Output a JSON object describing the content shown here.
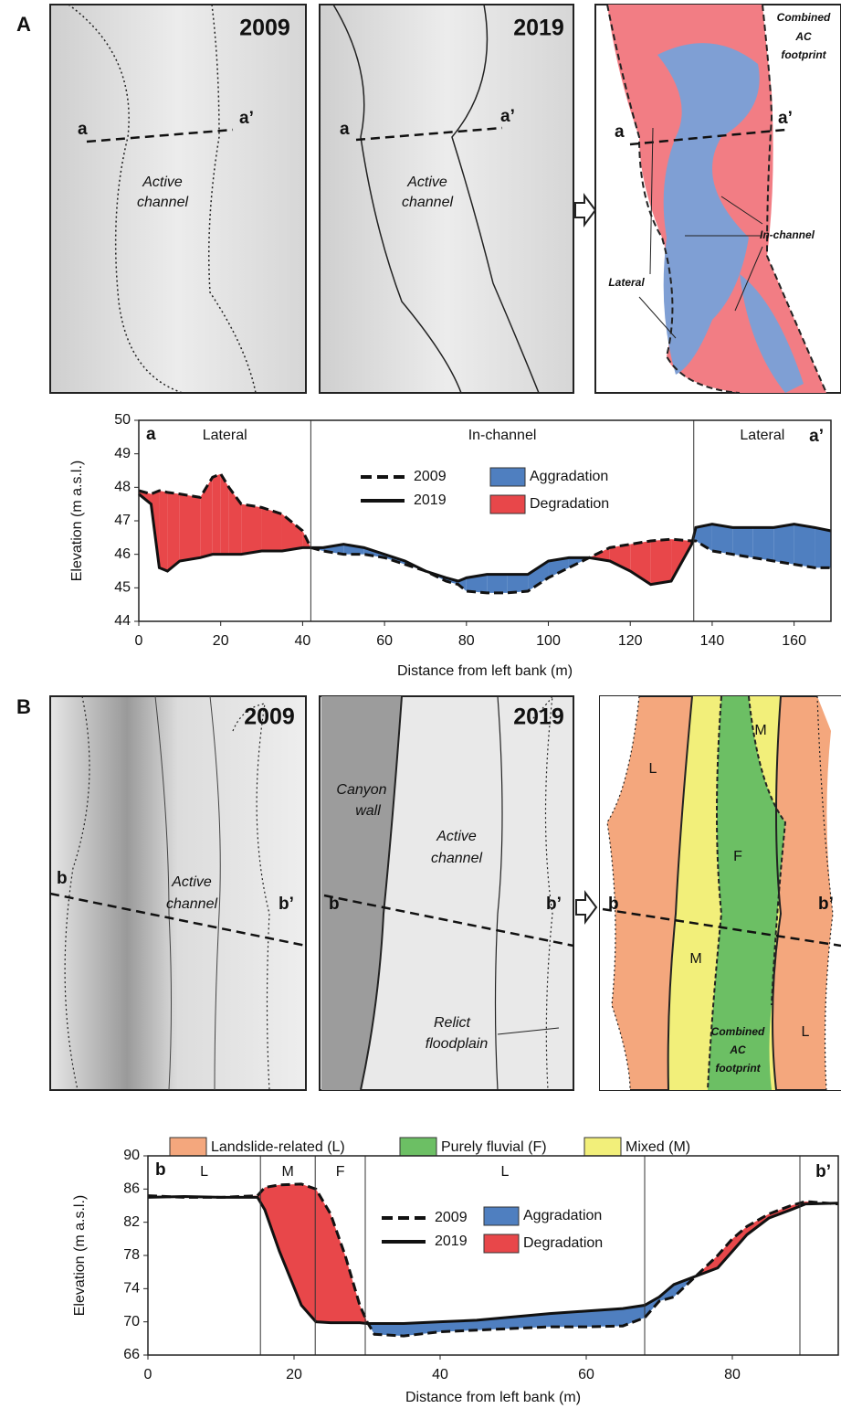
{
  "panel_a": {
    "letter": "A",
    "map_2009": {
      "year": "2009",
      "left": "a",
      "right": "a’",
      "channel": [
        "Active",
        "channel"
      ]
    },
    "map_2019": {
      "year": "2019",
      "left": "a",
      "right": "a’",
      "channel": [
        "Active",
        "channel"
      ]
    },
    "map_combined": {
      "footprint": [
        "Combined",
        "AC",
        "footprint"
      ],
      "left": "a",
      "right": "a’",
      "in_channel": "In-channel",
      "lateral": "Lateral"
    }
  },
  "panel_b": {
    "letter": "B",
    "map_2009": {
      "year": "2009",
      "left": "b",
      "right": "b’",
      "channel": [
        "Active",
        "channel"
      ]
    },
    "map_2019": {
      "year": "2019",
      "canyon": [
        "Canyon",
        "wall"
      ],
      "channel": [
        "Active",
        "channel"
      ],
      "left": "b",
      "right": "b’",
      "floodplain": [
        "Relict",
        "floodplain"
      ]
    },
    "map_combined": {
      "l_top": "L",
      "m_top": "M",
      "f": "F",
      "left": "b",
      "right": "b’",
      "m_bottom": "M",
      "footprint": [
        "Combined",
        "AC",
        "footprint"
      ],
      "l_bottom": "L"
    },
    "legend": [
      {
        "name": "Landslide-related (L)",
        "color": "#f4a77d"
      },
      {
        "name": "Purely fluvial (F)",
        "color": "#6cbf64"
      },
      {
        "name": "Mixed (M)",
        "color": "#f2ef7a"
      }
    ]
  },
  "chart_data": [
    {
      "type": "line",
      "xlabel": "Distance from left bank (m)",
      "ylabel": "Elevation (m a.s.l.)",
      "corner_labels": [
        "a",
        "a’"
      ],
      "zones": [
        "Lateral",
        "In-channel",
        "Lateral"
      ],
      "zone_bounds": [
        42,
        135.5
      ],
      "x": [
        0,
        3,
        5,
        7,
        10,
        15,
        18,
        20,
        22,
        25,
        30,
        35,
        40,
        42,
        45,
        50,
        55,
        60,
        65,
        70,
        75,
        78,
        80,
        85,
        90,
        95,
        100,
        105,
        110,
        115,
        120,
        125,
        130,
        135,
        136,
        140,
        145,
        150,
        155,
        160,
        165,
        169
      ],
      "series": [
        {
          "name": "2009",
          "color": "#111111",
          "dash": true,
          "values": [
            47.9,
            47.8,
            47.9,
            47.85,
            47.8,
            47.7,
            48.3,
            48.4,
            48.0,
            47.5,
            47.4,
            47.2,
            46.7,
            46.2,
            46.1,
            46.0,
            46.0,
            45.9,
            45.7,
            45.5,
            45.2,
            45.1,
            44.9,
            44.85,
            44.85,
            44.9,
            45.3,
            45.6,
            45.9,
            46.2,
            46.3,
            46.4,
            46.45,
            46.4,
            46.4,
            46.1,
            46.0,
            45.9,
            45.8,
            45.7,
            45.6,
            45.6
          ]
        },
        {
          "name": "2019",
          "color": "#111111",
          "dash": false,
          "values": [
            47.8,
            47.5,
            45.6,
            45.5,
            45.8,
            45.9,
            46.0,
            46.0,
            46.0,
            46.0,
            46.1,
            46.1,
            46.2,
            46.2,
            46.2,
            46.3,
            46.2,
            46.0,
            45.8,
            45.5,
            45.3,
            45.2,
            45.3,
            45.4,
            45.4,
            45.4,
            45.8,
            45.9,
            45.9,
            45.8,
            45.5,
            45.1,
            45.2,
            46.3,
            46.8,
            46.9,
            46.8,
            46.8,
            46.8,
            46.9,
            46.8,
            46.7
          ]
        }
      ],
      "fill_legend": [
        {
          "name": "Aggradation",
          "color": "#4f7fc0"
        },
        {
          "name": "Degradation",
          "color": "#e8474a"
        }
      ],
      "xlim": [
        0,
        169
      ],
      "ylim": [
        44,
        50
      ],
      "xticks": [
        0,
        20,
        40,
        60,
        80,
        100,
        120,
        140,
        160
      ],
      "yticks": [
        44,
        45,
        46,
        47,
        48,
        49,
        50
      ]
    },
    {
      "type": "line",
      "xlabel": "Distance from left bank (m)",
      "ylabel": "Elevation (m a.s.l.)",
      "corner_labels": [
        "b",
        "b’"
      ],
      "zones": [
        "L",
        "M",
        "F",
        "L"
      ],
      "zone_bounds": [
        15.4,
        22.9,
        29.75,
        68,
        89.25
      ],
      "x": [
        0,
        5,
        10,
        15,
        16,
        18,
        21,
        23,
        25,
        27,
        29,
        30,
        31,
        35,
        40,
        45,
        50,
        55,
        60,
        65,
        68,
        70,
        72,
        75,
        78,
        80,
        82,
        85,
        88,
        90,
        94.5
      ],
      "series": [
        {
          "name": "2009",
          "color": "#111111",
          "dash": true,
          "values": [
            85.2,
            85.0,
            85.0,
            85.2,
            86.2,
            86.5,
            86.6,
            86.0,
            83,
            78,
            72,
            70.0,
            68.5,
            68.3,
            68.8,
            69.0,
            69.2,
            69.4,
            69.4,
            69.5,
            70.5,
            72.5,
            73,
            75.5,
            78,
            80,
            81.5,
            83,
            84,
            84.5,
            84.2
          ]
        },
        {
          "name": "2019",
          "color": "#111111",
          "dash": false,
          "values": [
            85.0,
            85.1,
            85.0,
            85.0,
            83.5,
            78.5,
            72.0,
            70.0,
            69.9,
            69.9,
            69.9,
            69.8,
            69.8,
            69.8,
            70.0,
            70.2,
            70.6,
            71.0,
            71.3,
            71.6,
            72.0,
            73.0,
            74.5,
            75.5,
            76.5,
            78.5,
            80.5,
            82.5,
            83.5,
            84.2,
            84.3
          ]
        }
      ],
      "fill_legend": [
        {
          "name": "Aggradation",
          "color": "#4f7fc0"
        },
        {
          "name": "Degradation",
          "color": "#e8474a"
        }
      ],
      "xlim": [
        0,
        94.5
      ],
      "ylim": [
        66,
        90
      ],
      "xticks": [
        0,
        20,
        40,
        60,
        80
      ],
      "yticks": [
        66,
        70,
        74,
        78,
        82,
        86,
        90
      ]
    }
  ]
}
